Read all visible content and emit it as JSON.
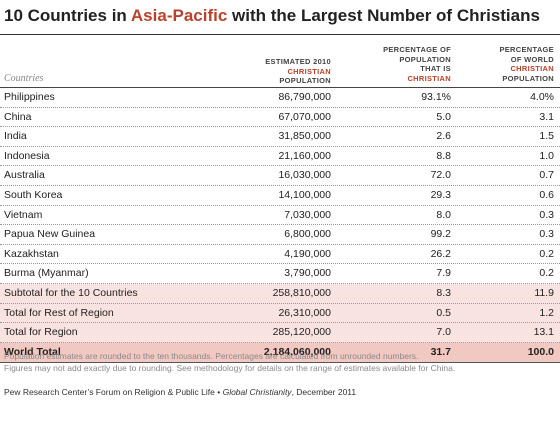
{
  "title": {
    "before": "10 Countries in ",
    "highlight": "Asia-Pacific",
    "after": " with the Largest Number of Christians"
  },
  "columns": {
    "countries": "Countries",
    "pop": [
      "ESTIMATED 2010",
      "CHRISTIAN",
      "POPULATION"
    ],
    "pct": [
      "PERCENTAGE OF",
      "POPULATION",
      "THAT IS",
      "CHRISTIAN"
    ],
    "world": [
      "PERCENTAGE",
      "OF WORLD",
      "CHRISTIAN",
      "POPULATION"
    ]
  },
  "rows": [
    {
      "name": "Philippines",
      "pop": "86,790,000",
      "pct": "93.1%",
      "world": "4.0%"
    },
    {
      "name": "China",
      "pop": "67,070,000",
      "pct": "5.0",
      "world": "3.1"
    },
    {
      "name": "India",
      "pop": "31,850,000",
      "pct": "2.6",
      "world": "1.5"
    },
    {
      "name": "Indonesia",
      "pop": "21,160,000",
      "pct": "8.8",
      "world": "1.0"
    },
    {
      "name": "Australia",
      "pop": "16,030,000",
      "pct": "72.0",
      "world": "0.7"
    },
    {
      "name": "South Korea",
      "pop": "14,100,000",
      "pct": "29.3",
      "world": "0.6"
    },
    {
      "name": "Vietnam",
      "pop": "7,030,000",
      "pct": "8.0",
      "world": "0.3"
    },
    {
      "name": "Papua New Guinea",
      "pop": "6,800,000",
      "pct": "99.2",
      "world": "0.3"
    },
    {
      "name": "Kazakhstan",
      "pop": "4,190,000",
      "pct": "26.2",
      "world": "0.2"
    },
    {
      "name": "Burma (Myanmar)",
      "pop": "3,790,000",
      "pct": "7.9",
      "world": "0.2"
    }
  ],
  "subtotals": [
    {
      "name": "Subtotal for the 10 Countries",
      "pop": "258,810,000",
      "pct": "8.3",
      "world": "11.9"
    },
    {
      "name": "Total for Rest of Region",
      "pop": "26,310,000",
      "pct": "0.5",
      "world": "1.2"
    },
    {
      "name": "Total for Region",
      "pop": "285,120,000",
      "pct": "7.0",
      "world": "13.1"
    }
  ],
  "world_total": {
    "name": "World Total",
    "pop": "2,184,060,000",
    "pct": "31.7",
    "world": "100.0"
  },
  "notes": [
    "Population estimates are rounded to the ten thousands. Percentages are calculated from unrounded numbers.",
    "Figures may not add exactly due to rounding. See methodology for details on the range of estimates available for China."
  ],
  "source": {
    "org": "Pew Research Center’s Forum on Religion & Public Life • ",
    "report": "Global Christianity",
    "date": ", December 2011"
  }
}
